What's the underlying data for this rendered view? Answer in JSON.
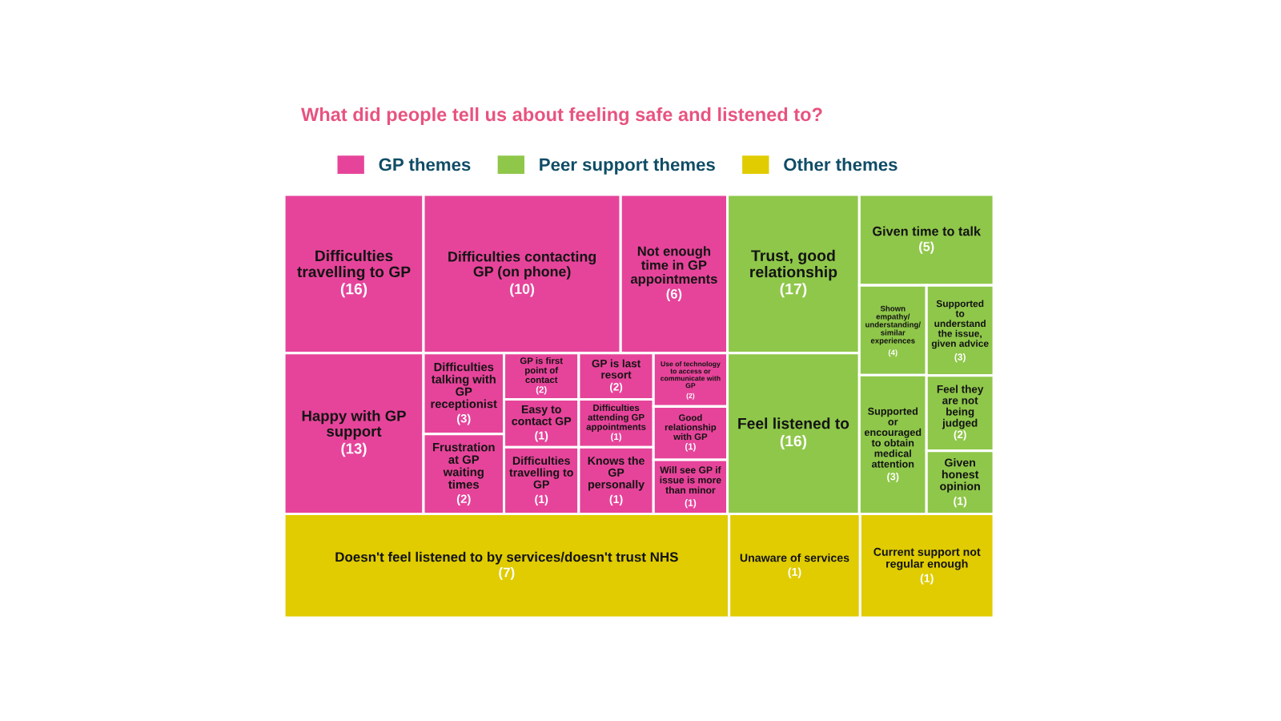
{
  "chart_data": {
    "type": "other",
    "title": "What did people tell us about feeling safe and listened to?",
    "categories": [
      "Difficulties travelling to GP",
      "Difficulties contacting GP (on phone)",
      "Not enough time in GP appointments",
      "Happy with GP support",
      "Difficulties talking with GP receptionist",
      "Frustration at GP waiting times",
      "GP is first point of contact",
      "Easy to contact GP",
      "Difficulties travelling to GP",
      "GP is last resort",
      "Difficulties attending GP appointments",
      "Knows the GP personally",
      "Use of technology to access or communicate with GP",
      "Good relationship with GP",
      "Will see GP if issue is more than minor",
      "Trust, good relationship",
      "Feel listened to",
      "Given time to talk",
      "Shown empathy/understanding/similar experiences",
      "Supported to understand the issue, given advice",
      "Supported or encouraged to obtain medical attention",
      "Feel they are not being judged",
      "Given honest opinion",
      "Doesn't feel listened to by services/doesn't trust NHS",
      "Unaware of services",
      "Current support not regular enough"
    ],
    "series": [
      {
        "name": "GP themes",
        "color": "#e6449a",
        "values": [
          16,
          10,
          6,
          13,
          3,
          2,
          2,
          1,
          1,
          2,
          1,
          1,
          2,
          1,
          1,
          null,
          null,
          null,
          null,
          null,
          null,
          null,
          null,
          null,
          null,
          null
        ],
        "value_labels": [
          "(16)",
          "(10)",
          "(6)",
          "(13)",
          "(3)",
          "(2)",
          "(2)",
          "(1)",
          "(1)",
          "(2)",
          "(1)",
          "(1)",
          "(2)",
          "(1)",
          "(1)",
          null,
          null,
          null,
          null,
          null,
          null,
          null,
          null,
          null,
          null,
          null
        ]
      },
      {
        "name": "Peer support themes",
        "color": "#8fc74a",
        "values": [
          null,
          null,
          null,
          null,
          null,
          null,
          null,
          null,
          null,
          null,
          null,
          null,
          null,
          null,
          null,
          17,
          16,
          5,
          4,
          3,
          3,
          2,
          1,
          null,
          null,
          null
        ],
        "value_labels": [
          null,
          null,
          null,
          null,
          null,
          null,
          null,
          null,
          null,
          null,
          null,
          null,
          null,
          null,
          null,
          "(17)",
          "(16)",
          "(5)",
          "(4)",
          "(3)",
          "(3)",
          "(2)",
          "(1)",
          null,
          null,
          null
        ]
      },
      {
        "name": "Other themes",
        "color": "#e0cc00",
        "values": [
          null,
          null,
          null,
          null,
          null,
          null,
          null,
          null,
          null,
          null,
          null,
          null,
          null,
          null,
          null,
          null,
          null,
          null,
          null,
          null,
          null,
          null,
          null,
          7,
          1,
          1
        ],
        "value_labels": [
          null,
          null,
          null,
          null,
          null,
          null,
          null,
          null,
          null,
          null,
          null,
          null,
          null,
          null,
          null,
          null,
          null,
          null,
          null,
          null,
          null,
          null,
          null,
          "(7)",
          "(1)",
          "(1)"
        ]
      }
    ],
    "legend": "top"
  }
}
